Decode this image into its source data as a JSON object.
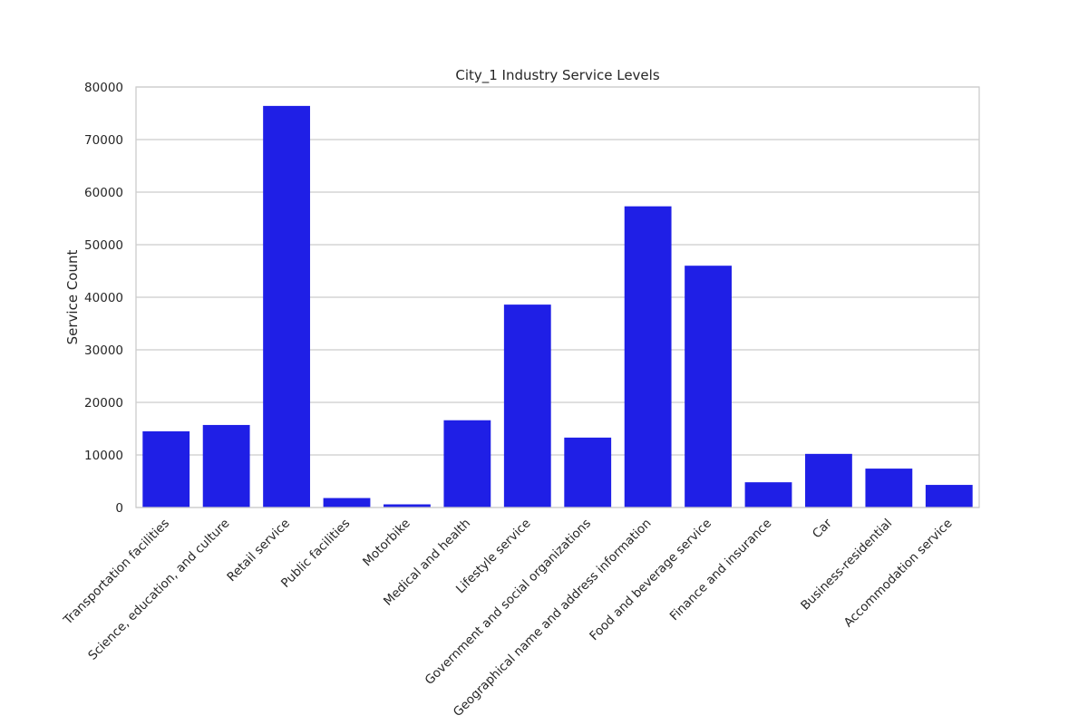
{
  "chart_data": {
    "type": "bar",
    "title": "City_1 Industry Service Levels",
    "xlabel": "",
    "ylabel": "Service Count",
    "ylim": [
      0,
      80000
    ],
    "yticks": [
      0,
      10000,
      20000,
      30000,
      40000,
      50000,
      60000,
      70000,
      80000
    ],
    "grid": "horizontal",
    "bar_color": "#1f1fe6",
    "categories": [
      "Transportation facilities",
      "Science, education, and culture",
      "Retail service",
      "Public facilities",
      "Motorbike",
      "Medical and health",
      "Lifestyle service",
      "Government and social organizations",
      "Geographical name and address information",
      "Food and beverage service",
      "Finance and insurance",
      "Car",
      "Business-residential",
      "Accommodation service"
    ],
    "values": [
      14500,
      15700,
      76400,
      1800,
      600,
      16600,
      38600,
      13300,
      57300,
      46000,
      4800,
      10200,
      7400,
      4300
    ]
  }
}
